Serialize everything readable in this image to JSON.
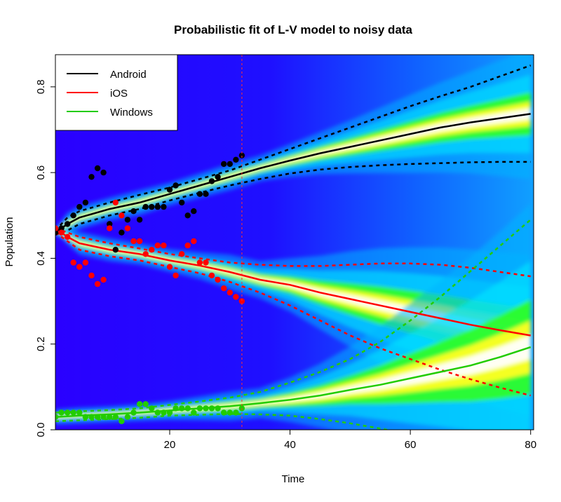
{
  "chart_data": {
    "type": "line",
    "title": "Probabilistic fit of L-V model to noisy data",
    "xlabel": "Time",
    "ylabel": "Population",
    "xlim": [
      1,
      80.5
    ],
    "ylim": [
      0,
      0.875
    ],
    "x_ticks": [
      20,
      40,
      60,
      80
    ],
    "x_tick_labels": [
      "20",
      "40",
      "60",
      "80"
    ],
    "y_ticks": [
      0.0,
      0.2,
      0.4,
      0.6,
      0.8
    ],
    "y_tick_labels": [
      "0.0",
      "0.2",
      "0.4",
      "0.6",
      "0.8"
    ],
    "vline_x": 32,
    "legend": {
      "position": "top-left",
      "entries": [
        {
          "label": "Android",
          "color": "#000000"
        },
        {
          "label": "iOS",
          "color": "#ff0000"
        },
        {
          "label": "Windows",
          "color": "#22cc00"
        }
      ]
    },
    "background": "probability-density heatmap (blue → cyan → green → yellow → white)",
    "series": [
      {
        "name": "Android",
        "color": "#000000",
        "point_color": "#000000",
        "mean": [
          [
            1,
            0.46
          ],
          [
            3,
            0.48
          ],
          [
            5,
            0.495
          ],
          [
            10,
            0.515
          ],
          [
            15,
            0.53
          ],
          [
            20,
            0.55
          ],
          [
            25,
            0.57
          ],
          [
            30,
            0.59
          ],
          [
            35,
            0.61
          ],
          [
            40,
            0.628
          ],
          [
            45,
            0.645
          ],
          [
            50,
            0.66
          ],
          [
            55,
            0.675
          ],
          [
            60,
            0.69
          ],
          [
            65,
            0.705
          ],
          [
            70,
            0.717
          ],
          [
            75,
            0.727
          ],
          [
            80,
            0.737
          ]
        ],
        "upper": [
          [
            1,
            0.465
          ],
          [
            3,
            0.495
          ],
          [
            5,
            0.51
          ],
          [
            10,
            0.53
          ],
          [
            15,
            0.548
          ],
          [
            20,
            0.565
          ],
          [
            25,
            0.585
          ],
          [
            30,
            0.605
          ],
          [
            35,
            0.63
          ],
          [
            40,
            0.655
          ],
          [
            45,
            0.68
          ],
          [
            50,
            0.705
          ],
          [
            55,
            0.73
          ],
          [
            60,
            0.755
          ],
          [
            65,
            0.778
          ],
          [
            70,
            0.8
          ],
          [
            75,
            0.825
          ],
          [
            80,
            0.85
          ]
        ],
        "lower": [
          [
            1,
            0.455
          ],
          [
            3,
            0.465
          ],
          [
            5,
            0.48
          ],
          [
            10,
            0.5
          ],
          [
            15,
            0.515
          ],
          [
            20,
            0.535
          ],
          [
            25,
            0.553
          ],
          [
            30,
            0.57
          ],
          [
            35,
            0.585
          ],
          [
            40,
            0.598
          ],
          [
            45,
            0.607
          ],
          [
            50,
            0.613
          ],
          [
            55,
            0.617
          ],
          [
            60,
            0.62
          ],
          [
            65,
            0.622
          ],
          [
            70,
            0.624
          ],
          [
            75,
            0.625
          ],
          [
            80,
            0.625
          ]
        ],
        "points": [
          [
            1,
            0.46
          ],
          [
            2,
            0.47
          ],
          [
            3,
            0.48
          ],
          [
            4,
            0.5
          ],
          [
            5,
            0.52
          ],
          [
            6,
            0.53
          ],
          [
            7,
            0.59
          ],
          [
            8,
            0.61
          ],
          [
            9,
            0.6
          ],
          [
            10,
            0.48
          ],
          [
            11,
            0.42
          ],
          [
            12,
            0.46
          ],
          [
            13,
            0.49
          ],
          [
            14,
            0.51
          ],
          [
            15,
            0.49
          ],
          [
            16,
            0.52
          ],
          [
            17,
            0.52
          ],
          [
            18,
            0.52
          ],
          [
            19,
            0.52
          ],
          [
            20,
            0.56
          ],
          [
            21,
            0.57
          ],
          [
            22,
            0.53
          ],
          [
            23,
            0.5
          ],
          [
            24,
            0.51
          ],
          [
            25,
            0.55
          ],
          [
            26,
            0.55
          ],
          [
            27,
            0.58
          ],
          [
            28,
            0.59
          ],
          [
            29,
            0.62
          ],
          [
            30,
            0.62
          ],
          [
            31,
            0.63
          ],
          [
            32,
            0.64
          ]
        ]
      },
      {
        "name": "iOS",
        "color": "#ff0000",
        "point_color": "#ff0000",
        "mean": [
          [
            1,
            0.465
          ],
          [
            2,
            0.46
          ],
          [
            3,
            0.45
          ],
          [
            5,
            0.435
          ],
          [
            10,
            0.42
          ],
          [
            15,
            0.41
          ],
          [
            20,
            0.395
          ],
          [
            25,
            0.383
          ],
          [
            30,
            0.368
          ],
          [
            35,
            0.35
          ],
          [
            40,
            0.338
          ],
          [
            45,
            0.32
          ],
          [
            50,
            0.305
          ],
          [
            55,
            0.29
          ],
          [
            60,
            0.275
          ],
          [
            65,
            0.26
          ],
          [
            70,
            0.245
          ],
          [
            75,
            0.232
          ],
          [
            80,
            0.22
          ]
        ],
        "upper": [
          [
            1,
            0.47
          ],
          [
            3,
            0.46
          ],
          [
            5,
            0.45
          ],
          [
            10,
            0.435
          ],
          [
            15,
            0.423
          ],
          [
            20,
            0.41
          ],
          [
            25,
            0.4
          ],
          [
            30,
            0.39
          ],
          [
            35,
            0.385
          ],
          [
            40,
            0.382
          ],
          [
            45,
            0.382
          ],
          [
            50,
            0.385
          ],
          [
            55,
            0.388
          ],
          [
            60,
            0.388
          ],
          [
            65,
            0.385
          ],
          [
            70,
            0.378
          ],
          [
            75,
            0.368
          ],
          [
            80,
            0.358
          ]
        ],
        "lower": [
          [
            1,
            0.46
          ],
          [
            3,
            0.44
          ],
          [
            5,
            0.42
          ],
          [
            10,
            0.405
          ],
          [
            15,
            0.395
          ],
          [
            20,
            0.38
          ],
          [
            25,
            0.365
          ],
          [
            30,
            0.345
          ],
          [
            35,
            0.32
          ],
          [
            40,
            0.29
          ],
          [
            45,
            0.255
          ],
          [
            50,
            0.22
          ],
          [
            55,
            0.19
          ],
          [
            60,
            0.165
          ],
          [
            65,
            0.14
          ],
          [
            70,
            0.118
          ],
          [
            75,
            0.098
          ],
          [
            80,
            0.08
          ]
        ],
        "points": [
          [
            1,
            0.47
          ],
          [
            2,
            0.46
          ],
          [
            3,
            0.45
          ],
          [
            4,
            0.39
          ],
          [
            5,
            0.38
          ],
          [
            6,
            0.39
          ],
          [
            7,
            0.36
          ],
          [
            8,
            0.34
          ],
          [
            9,
            0.35
          ],
          [
            10,
            0.47
          ],
          [
            11,
            0.53
          ],
          [
            12,
            0.5
          ],
          [
            13,
            0.47
          ],
          [
            14,
            0.44
          ],
          [
            15,
            0.44
          ],
          [
            16,
            0.41
          ],
          [
            17,
            0.42
          ],
          [
            18,
            0.43
          ],
          [
            19,
            0.43
          ],
          [
            20,
            0.38
          ],
          [
            21,
            0.36
          ],
          [
            22,
            0.41
          ],
          [
            23,
            0.43
          ],
          [
            24,
            0.44
          ],
          [
            25,
            0.39
          ],
          [
            26,
            0.39
          ],
          [
            27,
            0.36
          ],
          [
            28,
            0.35
          ],
          [
            29,
            0.33
          ],
          [
            30,
            0.32
          ],
          [
            31,
            0.31
          ],
          [
            32,
            0.3
          ]
        ]
      },
      {
        "name": "Windows",
        "color": "#22cc00",
        "point_color": "#22cc00",
        "mean": [
          [
            1,
            0.03
          ],
          [
            5,
            0.033
          ],
          [
            10,
            0.036
          ],
          [
            15,
            0.04
          ],
          [
            20,
            0.045
          ],
          [
            25,
            0.05
          ],
          [
            30,
            0.055
          ],
          [
            35,
            0.062
          ],
          [
            40,
            0.07
          ],
          [
            45,
            0.08
          ],
          [
            50,
            0.093
          ],
          [
            55,
            0.105
          ],
          [
            60,
            0.12
          ],
          [
            65,
            0.135
          ],
          [
            70,
            0.15
          ],
          [
            75,
            0.17
          ],
          [
            80,
            0.193
          ]
        ],
        "upper": [
          [
            1,
            0.04
          ],
          [
            5,
            0.043
          ],
          [
            10,
            0.046
          ],
          [
            15,
            0.05
          ],
          [
            20,
            0.058
          ],
          [
            25,
            0.066
          ],
          [
            30,
            0.075
          ],
          [
            35,
            0.088
          ],
          [
            40,
            0.11
          ],
          [
            45,
            0.135
          ],
          [
            50,
            0.165
          ],
          [
            55,
            0.205
          ],
          [
            60,
            0.255
          ],
          [
            65,
            0.31
          ],
          [
            70,
            0.37
          ],
          [
            75,
            0.43
          ],
          [
            80,
            0.49
          ]
        ],
        "lower": [
          [
            1,
            0.02
          ],
          [
            5,
            0.022
          ],
          [
            10,
            0.025
          ],
          [
            15,
            0.028
          ],
          [
            20,
            0.033
          ],
          [
            25,
            0.035
          ],
          [
            30,
            0.037
          ],
          [
            35,
            0.036
          ],
          [
            40,
            0.033
          ],
          [
            45,
            0.025
          ],
          [
            50,
            0.015
          ],
          [
            55,
            0.003
          ],
          [
            58,
            -0.005
          ]
        ],
        "points": [
          [
            1,
            0.03
          ],
          [
            2,
            0.04
          ],
          [
            3,
            0.04
          ],
          [
            4,
            0.04
          ],
          [
            5,
            0.04
          ],
          [
            6,
            0.03
          ],
          [
            7,
            0.03
          ],
          [
            8,
            0.03
          ],
          [
            9,
            0.03
          ],
          [
            10,
            0.03
          ],
          [
            11,
            0.03
          ],
          [
            12,
            0.02
          ],
          [
            13,
            0.03
          ],
          [
            14,
            0.04
          ],
          [
            15,
            0.06
          ],
          [
            16,
            0.06
          ],
          [
            17,
            0.05
          ],
          [
            18,
            0.04
          ],
          [
            19,
            0.04
          ],
          [
            20,
            0.04
          ],
          [
            21,
            0.05
          ],
          [
            22,
            0.05
          ],
          [
            23,
            0.05
          ],
          [
            24,
            0.04
          ],
          [
            25,
            0.05
          ],
          [
            26,
            0.05
          ],
          [
            27,
            0.05
          ],
          [
            28,
            0.05
          ],
          [
            29,
            0.04
          ],
          [
            30,
            0.04
          ],
          [
            31,
            0.04
          ],
          [
            32,
            0.05
          ]
        ]
      }
    ]
  }
}
